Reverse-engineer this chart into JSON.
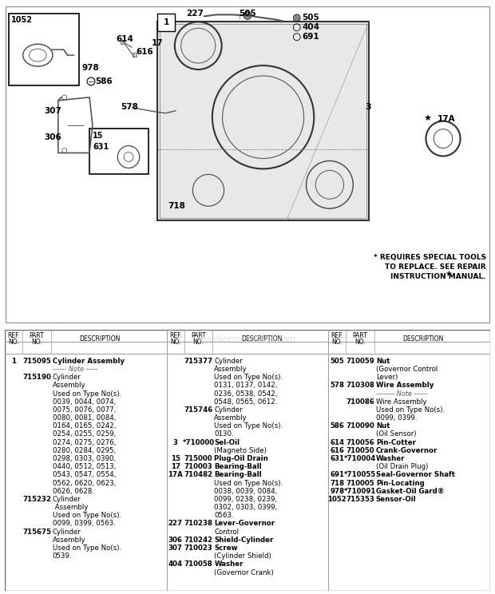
{
  "bg_color": "#ffffff",
  "special_tools_note": "* REQUIRES SPECIAL TOOLS\nTO REPLACE. SEE REPAIR\nINSTRUCTION MANUAL.",
  "watermark": "ReplacementParts.com",
  "col1_entries": [
    [
      "1",
      "715095",
      "Cylinder Assembly",
      true,
      false
    ],
    [
      "",
      "",
      "------ Note -----",
      false,
      true
    ],
    [
      "",
      "715190",
      "Cylinder",
      false,
      false
    ],
    [
      "",
      "",
      "Assembly",
      false,
      false
    ],
    [
      "",
      "",
      "Used on Type No(s).",
      false,
      false
    ],
    [
      "",
      "",
      "0039, 0044, 0074,",
      false,
      false
    ],
    [
      "",
      "",
      "0075, 0076, 0077,",
      false,
      false
    ],
    [
      "",
      "",
      "0080, 0081, 0084,",
      false,
      false
    ],
    [
      "",
      "",
      "0164, 0165, 0242,",
      false,
      false
    ],
    [
      "",
      "",
      "0254, 0255, 0259,",
      false,
      false
    ],
    [
      "",
      "",
      "0274, 0275, 0276,",
      false,
      false
    ],
    [
      "",
      "",
      "0280, 0284, 0295,",
      false,
      false
    ],
    [
      "",
      "",
      "0298, 0303, 0390,",
      false,
      false
    ],
    [
      "",
      "",
      "0440, 0512, 0513,",
      false,
      false
    ],
    [
      "",
      "",
      "0543, 0547, 0554,",
      false,
      false
    ],
    [
      "",
      "",
      "0562, 0620, 0623,",
      false,
      false
    ],
    [
      "",
      "",
      "0626, 0628.",
      false,
      false
    ],
    [
      "",
      "715232",
      "Cylinder",
      false,
      false
    ],
    [
      "",
      "",
      " Assembly",
      false,
      false
    ],
    [
      "",
      "",
      "Used on Type No(s).",
      false,
      false
    ],
    [
      "",
      "",
      "0099, 0399, 0563.",
      false,
      false
    ],
    [
      "",
      "715675",
      "Cylinder",
      false,
      false
    ],
    [
      "",
      "",
      "Assembly",
      false,
      false
    ],
    [
      "",
      "",
      "Used on Type No(s).",
      false,
      false
    ],
    [
      "",
      "",
      "0539.",
      false,
      false
    ]
  ],
  "col2_entries": [
    [
      "",
      "715377",
      "Cylinder",
      false,
      false
    ],
    [
      "",
      "",
      "Assembly",
      false,
      false
    ],
    [
      "",
      "",
      "Used on Type No(s).",
      false,
      false
    ],
    [
      "",
      "",
      "0131, 0137, 0142,",
      false,
      false
    ],
    [
      "",
      "",
      "0236, 0538, 0542,",
      false,
      false
    ],
    [
      "",
      "",
      "0548, 0565, 0612.",
      false,
      false
    ],
    [
      "",
      "715746",
      "Cylinder",
      false,
      false
    ],
    [
      "",
      "",
      "Assembly",
      false,
      false
    ],
    [
      "",
      "",
      "Used on Type No(s).",
      false,
      false
    ],
    [
      "",
      "",
      "0130.",
      false,
      false
    ],
    [
      "3",
      "*710000",
      "Sel-Oil",
      true,
      false
    ],
    [
      "",
      "",
      "(Magneto Side)",
      false,
      false
    ],
    [
      "15",
      "715000",
      "Plug-Oil Drain",
      true,
      false
    ],
    [
      "17",
      "710003",
      "Bearing-Ball",
      true,
      false
    ],
    [
      "17A",
      "710482",
      "Bearing-Ball",
      true,
      false
    ],
    [
      "",
      "",
      "Used on Type No(s).",
      false,
      false
    ],
    [
      "",
      "",
      "0038, 0039, 0084,",
      false,
      false
    ],
    [
      "",
      "",
      "0099, 0238, 0239,",
      false,
      false
    ],
    [
      "",
      "",
      "0302, 0303, 0399,",
      false,
      false
    ],
    [
      "",
      "",
      "0563.",
      false,
      false
    ],
    [
      "227",
      "710238",
      "Lever-Governor",
      true,
      false
    ],
    [
      "",
      "",
      "Control",
      false,
      false
    ],
    [
      "306",
      "710242",
      "Shield-Cylinder",
      true,
      false
    ],
    [
      "307",
      "710023",
      "Screw",
      true,
      false
    ],
    [
      "",
      "",
      "(Cylinder Shield)",
      false,
      false
    ],
    [
      "404",
      "710058",
      "Washer",
      true,
      false
    ],
    [
      "",
      "",
      "(Governor Crank)",
      false,
      false
    ]
  ],
  "col3_entries": [
    [
      "505",
      "710059",
      "Nut",
      true,
      false
    ],
    [
      "",
      "",
      "(Governor Control",
      false,
      false
    ],
    [
      "",
      "",
      "Lever)",
      false,
      false
    ],
    [
      "578",
      "710308",
      "Wire Assembly",
      true,
      false
    ],
    [
      "",
      "",
      "-------- Note ------",
      false,
      true
    ],
    [
      "",
      "710086",
      "Wire Assembly",
      false,
      false
    ],
    [
      "",
      "",
      "Used on Type No(s).",
      false,
      false
    ],
    [
      "",
      "",
      "0099, 0399.",
      false,
      false
    ],
    [
      "586",
      "710090",
      "Nut",
      true,
      false
    ],
    [
      "",
      "",
      "(Oil Sensor)",
      false,
      false
    ],
    [
      "614",
      "710056",
      "Pin-Cotter",
      true,
      false
    ],
    [
      "616",
      "710050",
      "Crank-Governor",
      true,
      false
    ],
    [
      "631",
      "*710004",
      "Washer",
      true,
      false
    ],
    [
      "",
      "",
      "(Oil Drain Plug)",
      false,
      false
    ],
    [
      "691",
      "*710055",
      "Seal-Governor Shaft",
      true,
      false
    ],
    [
      "718",
      "710005",
      "Pin-Locating",
      true,
      false
    ],
    [
      "978",
      "*710091",
      "Gasket-Oil Gard®",
      true,
      false
    ],
    [
      "1052",
      "715353",
      "Sensor-Oil",
      true,
      false
    ]
  ]
}
